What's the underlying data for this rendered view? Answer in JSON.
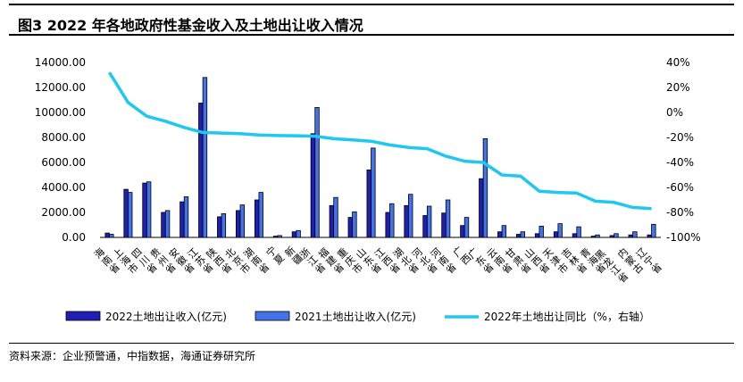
{
  "header": {
    "title": "图3   2022 年各地政府性基金收入及土地出让收入情况"
  },
  "footer": {
    "source": "资料来源：企业预警通，中指数据，海通证券研究所"
  },
  "chart_data": {
    "type": "bar",
    "categories": [
      "海南省",
      "上海市",
      "四川省",
      "贵州省",
      "安徽省",
      "江苏省",
      "陕西省",
      "北京市",
      "湖南省",
      "宁夏",
      "新疆",
      "浙江省",
      "福建省",
      "重庆市",
      "山东省",
      "江西省",
      "湖北省",
      "河北省",
      "河南省",
      "广西",
      "广东省",
      "云南省",
      "甘肃省",
      "山西省",
      "天津市",
      "吉林省",
      "青海省",
      "黑龙江省",
      "内蒙古",
      "辽宁省"
    ],
    "series": [
      {
        "name": "2022土地出让收入(亿元)",
        "axis": "left",
        "type": "bar",
        "color": "#1f1fb4",
        "values": [
          350,
          3850,
          4350,
          2000,
          2850,
          10750,
          1650,
          2150,
          3000,
          100,
          450,
          8300,
          2550,
          1600,
          5400,
          2000,
          2550,
          1750,
          1950,
          950,
          4700,
          450,
          250,
          300,
          450,
          300,
          100,
          150,
          200,
          200
        ]
      },
      {
        "name": "2021土地出让收入(亿元)",
        "axis": "left",
        "type": "bar",
        "color": "#4472e8",
        "values": [
          250,
          3600,
          4450,
          2150,
          3250,
          12800,
          1900,
          2600,
          3600,
          150,
          550,
          10400,
          3200,
          2050,
          7150,
          2700,
          3450,
          2500,
          3000,
          1600,
          7900,
          950,
          450,
          900,
          1100,
          850,
          200,
          300,
          450,
          1050
        ]
      },
      {
        "name": "2022年土地出让同比（%，右轴）",
        "axis": "right",
        "type": "line",
        "color": "#1ec8f0",
        "values": [
          32,
          8,
          -3,
          -7,
          -12,
          -16,
          -16.5,
          -17,
          -18,
          -18.5,
          -18.7,
          -19,
          -21,
          -22,
          -23,
          -26,
          -28,
          -29,
          -35,
          -39,
          -40,
          -50,
          -51,
          -63,
          -64,
          -64.5,
          -71,
          -72,
          -76,
          -77
        ]
      }
    ],
    "y_left": {
      "lim": [
        0,
        14000
      ],
      "ticks": [
        "0.00",
        "2000.00",
        "4000.00",
        "6000.00",
        "8000.00",
        "10000.00",
        "12000.00",
        "14000.00"
      ]
    },
    "y_right": {
      "lim": [
        -100,
        40
      ],
      "ticks": [
        "-100%",
        "-80%",
        "-60%",
        "-40%",
        "-20%",
        "0%",
        "20%",
        "40%"
      ]
    },
    "legend": {
      "placement": "bottom"
    },
    "grid": false
  }
}
